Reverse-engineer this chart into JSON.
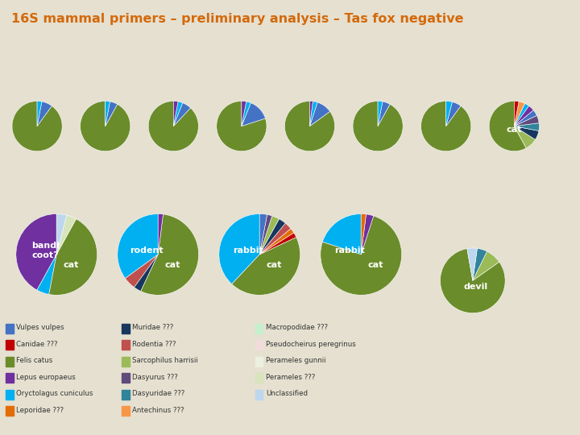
{
  "title": "16S mammal primers – preliminary analysis – Tas fox negative",
  "bg_color": "#e5e0d0",
  "title_color": "#d4690a",
  "species_colors": {
    "Vulpes vulpes": "#4472c4",
    "Canidae ???": "#c00000",
    "Felis catus": "#6b8c2a",
    "Lepus europaeus": "#7030a0",
    "Oryctolagus cuniculus": "#00b0f0",
    "Leporidae ???": "#e36c09",
    "Muridae ???": "#17375e",
    "Rodentia ???": "#c0504d",
    "Sarcophilus harrisii": "#9bbb59",
    "Dasyurus ???": "#604a7b",
    "Dasyuridae ???": "#31849b",
    "Antechinus ???": "#f79646",
    "Macropodidae ???": "#c6efce",
    "Pseudocheirus peregrinus": "#f2dcdb",
    "Perameles gunnii": "#ebf1de",
    "Perameles ???": "#d8e4bc",
    "Unclassified": "#bdd7ee"
  },
  "row1_pies": [
    {
      "label": "",
      "slices": {
        "Felis catus": 90,
        "Vulpes vulpes": 7,
        "Oryctolagus cuniculus": 3
      }
    },
    {
      "label": "",
      "slices": {
        "Felis catus": 92,
        "Vulpes vulpes": 5,
        "Oryctolagus cuniculus": 3
      }
    },
    {
      "label": "",
      "slices": {
        "Felis catus": 88,
        "Vulpes vulpes": 6,
        "Oryctolagus cuniculus": 3,
        "Lepus europaeus": 3
      }
    },
    {
      "label": "",
      "slices": {
        "Felis catus": 80,
        "Vulpes vulpes": 14,
        "Oryctolagus cuniculus": 3,
        "Lepus europaeus": 3
      }
    },
    {
      "label": "",
      "slices": {
        "Felis catus": 85,
        "Vulpes vulpes": 10,
        "Oryctolagus cuniculus": 3,
        "Lepus europaeus": 2
      }
    },
    {
      "label": "",
      "slices": {
        "Felis catus": 92,
        "Vulpes vulpes": 5,
        "Oryctolagus cuniculus": 3
      }
    },
    {
      "label": "",
      "slices": {
        "Felis catus": 90,
        "Vulpes vulpes": 6,
        "Oryctolagus cuniculus": 4
      }
    },
    {
      "label": "cat",
      "slices": {
        "Felis catus": 58,
        "Sarcophilus harrisii": 8,
        "Muridae ???": 6,
        "Dasyuridae ???": 5,
        "Dasyurus ???": 5,
        "Vulpes vulpes": 4,
        "Lepus europaeus": 4,
        "Oryctolagus cuniculus": 3,
        "Antechinus ???": 4,
        "Canidae ???": 3
      }
    }
  ],
  "row2_pies": [
    {
      "label": "bandi\ncoot?",
      "label2": "cat",
      "slices": {
        "Lepus europaeus": 42,
        "Oryctolagus cuniculus": 5,
        "Felis catus": 45,
        "Perameles ???": 4,
        "Unclassified": 4
      }
    },
    {
      "label": "rodent",
      "label2": "cat",
      "slices": {
        "Oryctolagus cuniculus": 35,
        "Rodentia ???": 5,
        "Muridae ???": 3,
        "Felis catus": 55,
        "Lepus europaeus": 2
      }
    },
    {
      "label": "rabbit",
      "label2": "cat",
      "slices": {
        "Oryctolagus cuniculus": 38,
        "Felis catus": 44,
        "Canidae ???": 2,
        "Leporidae ???": 2,
        "Rodentia ???": 3,
        "Muridae ???": 3,
        "Sarcophilus harrisii": 3,
        "Dasyurus ???": 2,
        "Vulpes vulpes": 3
      }
    },
    {
      "label": "rabbit",
      "label2": "cat",
      "slices": {
        "Oryctolagus cuniculus": 20,
        "Felis catus": 75,
        "Lepus europaeus": 3,
        "Leporidae ???": 2
      }
    }
  ],
  "devil_pie": {
    "label": "devil",
    "slices": {
      "Felis catus": 82,
      "Sarcophilus harrisii": 8,
      "Dasyuridae ???": 5,
      "Unclassified": 5
    }
  },
  "legend_items": [
    [
      "Vulpes vulpes",
      "Muridae ???",
      "Macropodidae ???"
    ],
    [
      "Canidae ???",
      "Rodentia ???",
      "Pseudocheirus peregrinus"
    ],
    [
      "Felis catus",
      "Sarcophilus harrisii",
      "Perameles gunnii"
    ],
    [
      "Lepus europaeus",
      "Dasyurus ???",
      "Perameles ???"
    ],
    [
      "Oryctolagus cuniculus",
      "Dasyuridae ???",
      "Unclassified"
    ],
    [
      "Leporidae ???",
      "Antechinus ???",
      ""
    ]
  ]
}
